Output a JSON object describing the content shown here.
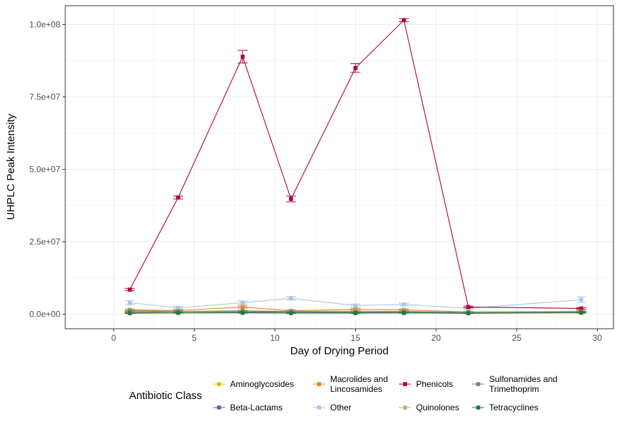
{
  "chart_data": {
    "type": "line",
    "title": "",
    "xlabel": "Day of Drying Period",
    "ylabel": "UHPLC Peak Intensity",
    "xlim": [
      -3,
      31
    ],
    "ylim": [
      -5000000,
      106500000
    ],
    "x_ticks": [
      0,
      5,
      10,
      15,
      20,
      25,
      30
    ],
    "x_tick_labels": [
      "0",
      "5",
      "10",
      "15",
      "20",
      "25",
      "30"
    ],
    "y_ticks": [
      0,
      25000000,
      50000000,
      75000000,
      100000000
    ],
    "y_tick_labels": [
      "0.0e+00",
      "2.5e+07",
      "5.0e+07",
      "7.5e+07",
      "1.0e+08"
    ],
    "grid": true,
    "legend": {
      "title": "Antibiotic Class",
      "position": "bottom",
      "columns": [
        [
          {
            "name": "Aminoglycosides",
            "color": "#e6c200"
          },
          {
            "name": "Beta-Lactams",
            "color": "#7b5a9a"
          }
        ],
        [
          {
            "name": "Macrolides and",
            "name2": "Lincosamides",
            "color": "#e08a1e"
          },
          {
            "name": "Other",
            "color": "#a6c8e8"
          }
        ],
        [
          {
            "name": "Phenicols",
            "color": "#b0003a"
          },
          {
            "name": "Quinolones",
            "color": "#c8aa78"
          }
        ],
        [
          {
            "name": "Sulfonamides and",
            "name2": "Trimethoprim",
            "color": "#808080"
          },
          {
            "name": "Tetracyclines",
            "color": "#1a7a4a"
          }
        ]
      ]
    },
    "series": [
      {
        "name": "Aminoglycosides",
        "color": "#e6c200",
        "x": [
          1,
          4,
          8,
          11,
          15,
          18,
          22,
          29
        ],
        "y": [
          300000,
          400000,
          500000,
          400000,
          400000,
          500000,
          300000,
          400000
        ],
        "err": [
          100000,
          100000,
          150000,
          100000,
          100000,
          100000,
          100000,
          100000
        ]
      },
      {
        "name": "Beta-Lactams",
        "color": "#7b5a9a",
        "x": [
          1,
          4,
          8,
          11,
          15,
          18,
          22,
          29
        ],
        "y": [
          600000,
          900000,
          800000,
          700000,
          600000,
          700000,
          500000,
          700000
        ],
        "err": [
          150000,
          150000,
          150000,
          150000,
          100000,
          150000,
          100000,
          150000
        ]
      },
      {
        "name": "Macrolides and Lincosamides",
        "color": "#e08a1e",
        "x": [
          1,
          4,
          8,
          11,
          15,
          18,
          22,
          29
        ],
        "y": [
          1500000,
          1300000,
          2500000,
          1200000,
          1700000,
          1500000,
          800000,
          1000000
        ],
        "err": [
          300000,
          300000,
          400000,
          300000,
          300000,
          300000,
          200000,
          300000
        ]
      },
      {
        "name": "Other",
        "color": "#a6c8e8",
        "x": [
          1,
          4,
          8,
          11,
          15,
          18,
          22,
          29
        ],
        "y": [
          4000000,
          2200000,
          4000000,
          5500000,
          3000000,
          3400000,
          2000000,
          5000000
        ],
        "err": [
          700000,
          400000,
          600000,
          600000,
          500000,
          400000,
          400000,
          1000000
        ]
      },
      {
        "name": "Phenicols",
        "color": "#b0003a",
        "x": [
          1,
          4,
          8,
          11,
          15,
          18,
          22,
          29
        ],
        "y": [
          8500000,
          40300000,
          88900000,
          39800000,
          85000000,
          101500000,
          2500000,
          2000000
        ],
        "err": [
          400000,
          500000,
          2200000,
          1000000,
          1500000,
          500000,
          300000,
          300000
        ]
      },
      {
        "name": "Quinolones",
        "color": "#c8aa78",
        "x": [
          1,
          4,
          8,
          11,
          15,
          18,
          22,
          29
        ],
        "y": [
          1000000,
          900000,
          1200000,
          1000000,
          1100000,
          1000000,
          700000,
          900000
        ],
        "err": [
          200000,
          200000,
          200000,
          200000,
          200000,
          200000,
          150000,
          200000
        ]
      },
      {
        "name": "Sulfonamides and Trimethoprim",
        "color": "#808080",
        "x": [
          1,
          4,
          8,
          11,
          15,
          18,
          22,
          29
        ],
        "y": [
          1200000,
          1000000,
          1100000,
          900000,
          800000,
          900000,
          600000,
          800000
        ],
        "err": [
          200000,
          200000,
          200000,
          150000,
          150000,
          150000,
          100000,
          150000
        ]
      },
      {
        "name": "Tetracyclines",
        "color": "#1a7a4a",
        "x": [
          1,
          4,
          8,
          11,
          15,
          18,
          22,
          29
        ],
        "y": [
          400000,
          500000,
          500000,
          400000,
          400000,
          450000,
          350000,
          600000
        ],
        "err": [
          100000,
          100000,
          100000,
          100000,
          100000,
          100000,
          100000,
          100000
        ]
      }
    ]
  }
}
